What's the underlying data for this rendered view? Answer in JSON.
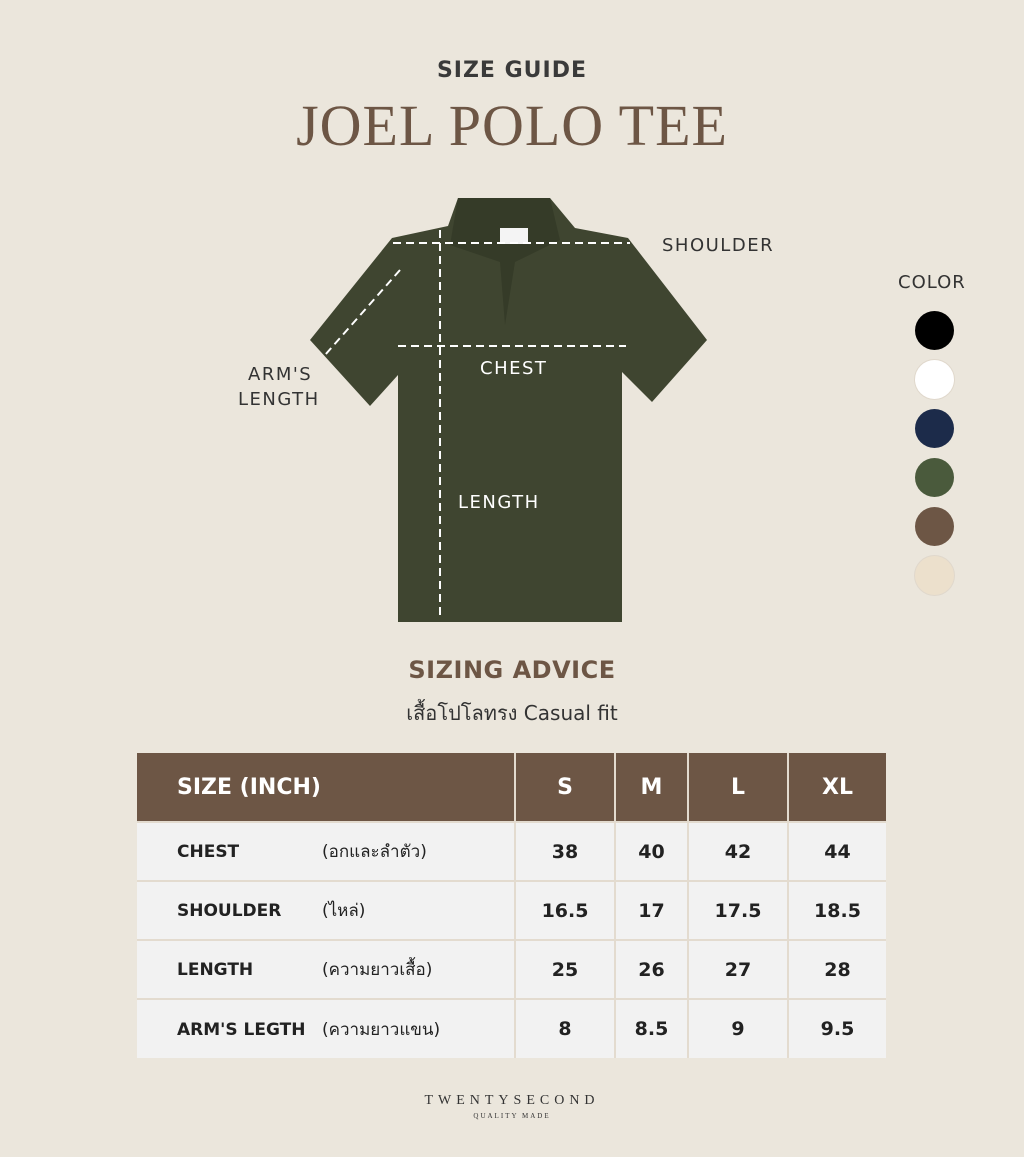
{
  "header": {
    "kicker": "SIZE GUIDE",
    "title": "JOEL POLO TEE"
  },
  "diagram": {
    "shoulder": "SHOULDER",
    "chest": "CHEST",
    "length": "LENGTH",
    "arm_line1": "ARM'S",
    "arm_line2": "LENGTH",
    "shirt_color": "#3f4530"
  },
  "colors": {
    "title": "COLOR",
    "swatches": [
      {
        "name": "black",
        "hex": "#000000"
      },
      {
        "name": "white",
        "hex": "#ffffff"
      },
      {
        "name": "navy",
        "hex": "#1c2b4a"
      },
      {
        "name": "olive",
        "hex": "#4a5a3c"
      },
      {
        "name": "brown",
        "hex": "#6d5645"
      },
      {
        "name": "cream",
        "hex": "#ece0cc"
      }
    ]
  },
  "advice": {
    "title": "SIZING ADVICE",
    "subtitle": "เสื้อโปโลทรง Casual fit"
  },
  "table": {
    "header": [
      "SIZE (INCH)",
      "S",
      "M",
      "L",
      "XL"
    ],
    "rows": [
      {
        "label": "CHEST",
        "thai": "(อกและลำตัว)",
        "values": [
          "38",
          "40",
          "42",
          "44"
        ]
      },
      {
        "label": "SHOULDER",
        "thai": "(ไหล่)",
        "values": [
          "16.5",
          "17",
          "17.5",
          "18.5"
        ]
      },
      {
        "label": "LENGTH",
        "thai": "(ความยาวเสื้อ)",
        "values": [
          "25",
          "26",
          "27",
          "28"
        ]
      },
      {
        "label": "ARM'S LEGTH",
        "thai": "(ความยาวแขน)",
        "values": [
          "8",
          "8.5",
          "9",
          "9.5"
        ]
      }
    ]
  },
  "footer": {
    "brand": "TWENTYSECOND",
    "tagline": "QUALITY MADE"
  }
}
